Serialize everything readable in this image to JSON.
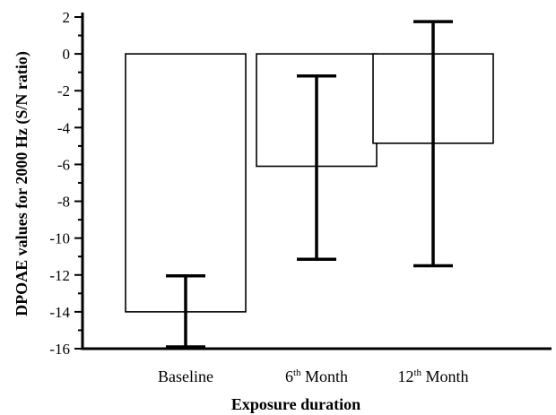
{
  "chart_data": {
    "type": "bar",
    "categories": [
      {
        "base": "Baseline",
        "sup": "",
        "rest": ""
      },
      {
        "base": "6",
        "sup": "th",
        "rest": " Month"
      },
      {
        "base": "12",
        "sup": "th",
        "rest": " Month"
      }
    ],
    "values": [
      -14.0,
      -6.1,
      -4.85
    ],
    "error_low": [
      -15.9,
      -11.15,
      -11.5
    ],
    "error_high": [
      -12.05,
      -1.2,
      1.75
    ],
    "xlabel": "Exposure duration",
    "ylabel": "DPOAE values for 2000 Hz (S/N ratio)",
    "ylim": [
      -16,
      2
    ],
    "yticks": [
      "2",
      "0",
      "-2",
      "-4",
      "-6",
      "-8",
      "-10",
      "-12",
      "-14",
      "-16"
    ],
    "grid": false,
    "legend": "none"
  }
}
